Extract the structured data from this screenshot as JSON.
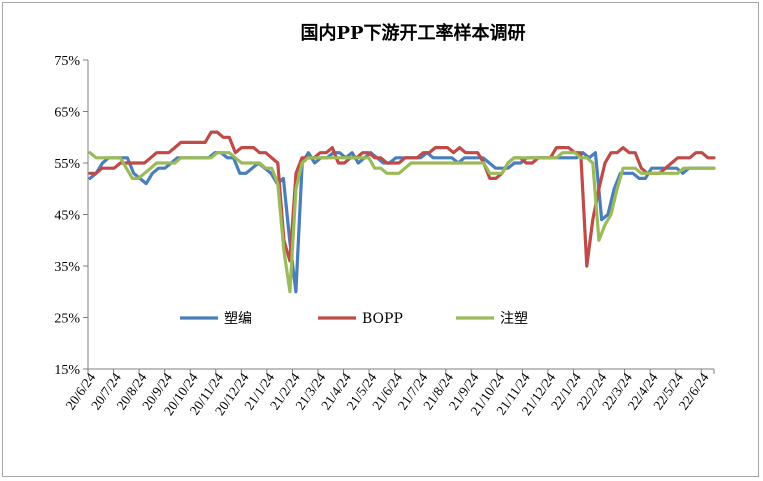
{
  "chart_data": {
    "type": "line",
    "title": "国内PP下游开工率样本调研",
    "ylim": [
      15,
      75
    ],
    "yticks": [
      "75%",
      "65%",
      "55%",
      "45%",
      "35%",
      "25%",
      "15%"
    ],
    "ytick_values": [
      75,
      65,
      55,
      45,
      35,
      25,
      15
    ],
    "xlabels": [
      "20/6/24",
      "20/7/24",
      "20/8/24",
      "20/9/24",
      "20/10/24",
      "20/11/24",
      "20/12/24",
      "21/1/24",
      "21/2/24",
      "21/3/24",
      "21/4/24",
      "21/5/24",
      "21/6/24",
      "21/7/24",
      "21/8/24",
      "21/9/24",
      "21/10/24",
      "21/11/24",
      "21/12/24",
      "22/1/24",
      "22/2/24",
      "22/3/24",
      "22/4/24",
      "22/5/24",
      "22/6/24"
    ],
    "grid": false,
    "legend_position": "inside-bottom",
    "series": [
      {
        "name": "塑编",
        "color": "#4a7ebb",
        "values": [
          52,
          53,
          55,
          56,
          56,
          56,
          56,
          53,
          52,
          51,
          53,
          54,
          54,
          55,
          56,
          56,
          56,
          56,
          56,
          56,
          57,
          57,
          56,
          56,
          53,
          53,
          54,
          55,
          54,
          53,
          51,
          52,
          40,
          30,
          55,
          57,
          55,
          56,
          56,
          57,
          57,
          56,
          57,
          55,
          56,
          57,
          56,
          55,
          55,
          56,
          56,
          56,
          56,
          56,
          57,
          56,
          56,
          56,
          56,
          55,
          56,
          56,
          56,
          56,
          55,
          54,
          54,
          54,
          55,
          55,
          56,
          56,
          56,
          56,
          56,
          56,
          56,
          56,
          56,
          57,
          56,
          57,
          44,
          45,
          50,
          53,
          53,
          53,
          52,
          52,
          54,
          54,
          54,
          54,
          54,
          53,
          54,
          54,
          54,
          54,
          54
        ]
      },
      {
        "name": "BOPP",
        "color": "#be4b48",
        "values": [
          53,
          53,
          54,
          54,
          54,
          55,
          55,
          55,
          55,
          55,
          56,
          57,
          57,
          57,
          58,
          59,
          59,
          59,
          59,
          59,
          61,
          61,
          60,
          60,
          57,
          58,
          58,
          58,
          57,
          57,
          56,
          55,
          40,
          36,
          53,
          56,
          56,
          56,
          57,
          57,
          58,
          55,
          55,
          56,
          56,
          57,
          57,
          56,
          56,
          55,
          55,
          55,
          56,
          56,
          56,
          57,
          57,
          58,
          58,
          58,
          57,
          58,
          57,
          57,
          57,
          55,
          52,
          52,
          53,
          55,
          56,
          56,
          55,
          55,
          56,
          56,
          56,
          58,
          58,
          58,
          57,
          57,
          35,
          44,
          50,
          55,
          57,
          57,
          58,
          57,
          57,
          54,
          53,
          53,
          53,
          54,
          55,
          56,
          56,
          56,
          57,
          57,
          56,
          56
        ]
      },
      {
        "name": "注塑",
        "color": "#9bbb59",
        "values": [
          57,
          56,
          56,
          56,
          56,
          56,
          54,
          52,
          52,
          53,
          54,
          55,
          55,
          55,
          55,
          56,
          56,
          56,
          56,
          56,
          56,
          57,
          57,
          57,
          56,
          55,
          55,
          55,
          55,
          54,
          54,
          51,
          38,
          30,
          50,
          55,
          56,
          56,
          56,
          56,
          56,
          56,
          56,
          56,
          56,
          56,
          56,
          54,
          54,
          53,
          53,
          53,
          54,
          55,
          55,
          55,
          55,
          55,
          55,
          55,
          55,
          55,
          55,
          55,
          55,
          55,
          53,
          53,
          53,
          55,
          56,
          56,
          56,
          56,
          56,
          56,
          56,
          56,
          57,
          57,
          57,
          56,
          56,
          55,
          40,
          43,
          45,
          50,
          54,
          54,
          54,
          53,
          53,
          53,
          53,
          53,
          53,
          53,
          54,
          54,
          54,
          54,
          54,
          54
        ]
      }
    ]
  }
}
